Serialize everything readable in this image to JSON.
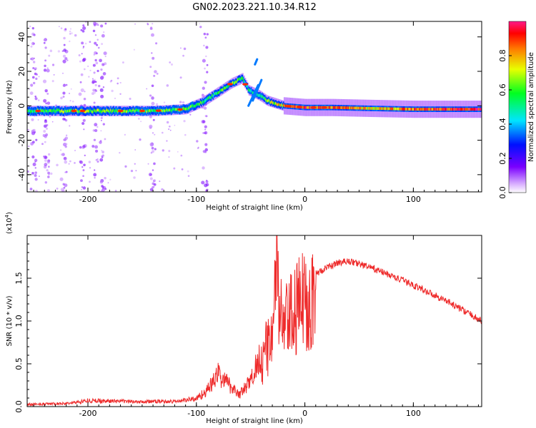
{
  "title": "GN02.2023.221.10.34.R12",
  "chart_data": [
    {
      "type": "heatmap",
      "xlabel": "Height of straight line (km)",
      "ylabel": "Frequency (Hz)",
      "xlim": [
        -256,
        163
      ],
      "ylim": [
        -50,
        49
      ],
      "xticks": [
        -200,
        -100,
        0,
        100
      ],
      "yticks": [
        40,
        20,
        0,
        -20,
        -40
      ],
      "colorbar": {
        "label": "Normalized spectral amplitude",
        "range": [
          0.0,
          1.0
        ],
        "ticks": [
          "0.0",
          "0.2",
          "0.4",
          "0.6",
          "0.8"
        ],
        "colormap": "rainbow"
      },
      "ridge": [
        {
          "x": -256,
          "f": -3,
          "amp": 0.55
        },
        {
          "x": -230,
          "f": -3,
          "amp": 0.6
        },
        {
          "x": -200,
          "f": -3,
          "amp": 0.65
        },
        {
          "x": -170,
          "f": -3,
          "amp": 0.6
        },
        {
          "x": -140,
          "f": -3,
          "amp": 0.6
        },
        {
          "x": -110,
          "f": -2,
          "amp": 0.6
        },
        {
          "x": -95,
          "f": 2,
          "amp": 0.55
        },
        {
          "x": -80,
          "f": 8,
          "amp": 0.55
        },
        {
          "x": -68,
          "f": 13,
          "amp": 0.6
        },
        {
          "x": -58,
          "f": 16,
          "amp": 0.55
        },
        {
          "x": -52,
          "f": 9,
          "amp": 0.5
        },
        {
          "x": -42,
          "f": 6,
          "amp": 0.5
        },
        {
          "x": -35,
          "f": 3,
          "amp": 0.6
        },
        {
          "x": -20,
          "f": 0,
          "amp": 0.8
        },
        {
          "x": 0,
          "f": -1,
          "amp": 0.9
        },
        {
          "x": 25,
          "f": -1,
          "amp": 0.85
        },
        {
          "x": 60,
          "f": -1.5,
          "amp": 0.75
        },
        {
          "x": 100,
          "f": -2,
          "amp": 0.85
        },
        {
          "x": 163,
          "f": -2,
          "amp": 0.95
        }
      ]
    },
    {
      "type": "line",
      "xlabel": "Height of straight line (km)",
      "ylabel": "SNR (10 * v/v)",
      "yunit": "(x10^4)",
      "xlim": [
        -256,
        163
      ],
      "ylim": [
        0,
        2.0
      ],
      "xticks": [
        -200,
        -100,
        0,
        100
      ],
      "yticks": [
        "0.0",
        "0.5",
        "1.0",
        "1.5"
      ],
      "color": "#ee2a2a",
      "series": [
        {
          "x": [
            -256,
            -220,
            -200,
            -160,
            -120,
            -100,
            -90,
            -80,
            -70,
            -60,
            -50,
            -40,
            -35,
            -30,
            -26,
            -20,
            -10,
            0,
            10,
            20,
            30,
            40,
            50,
            70,
            100,
            130,
            163
          ],
          "y": [
            0.02,
            0.03,
            0.06,
            0.05,
            0.05,
            0.08,
            0.16,
            0.32,
            0.22,
            0.12,
            0.25,
            0.55,
            0.8,
            1.05,
            1.55,
            1.05,
            1.25,
            1.45,
            1.55,
            1.62,
            1.68,
            1.7,
            1.67,
            1.58,
            1.42,
            1.24,
            1.0
          ]
        }
      ]
    }
  ]
}
